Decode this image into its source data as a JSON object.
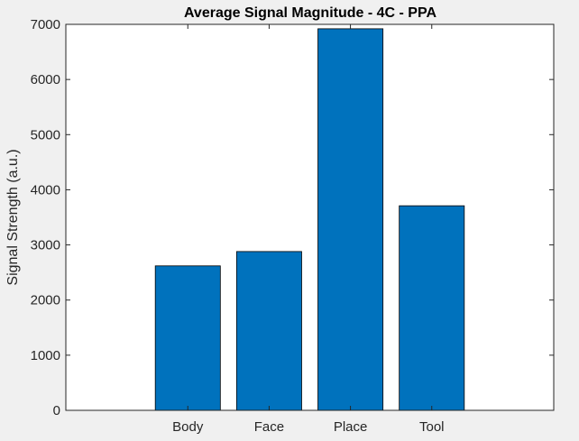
{
  "chart_data": {
    "type": "bar",
    "title": "Average Signal Magnitude - 4C - PPA",
    "xlabel": "",
    "ylabel": "Signal Strength (a.u.)",
    "categories": [
      "Body",
      "Face",
      "Place",
      "Tool"
    ],
    "values": [
      2620,
      2880,
      6920,
      3710
    ],
    "ylim": [
      0,
      7000
    ],
    "yticks": [
      0,
      1000,
      2000,
      3000,
      4000,
      5000,
      6000,
      7000
    ],
    "bar_color": "#0072bd",
    "grid": false,
    "legend": "none"
  }
}
